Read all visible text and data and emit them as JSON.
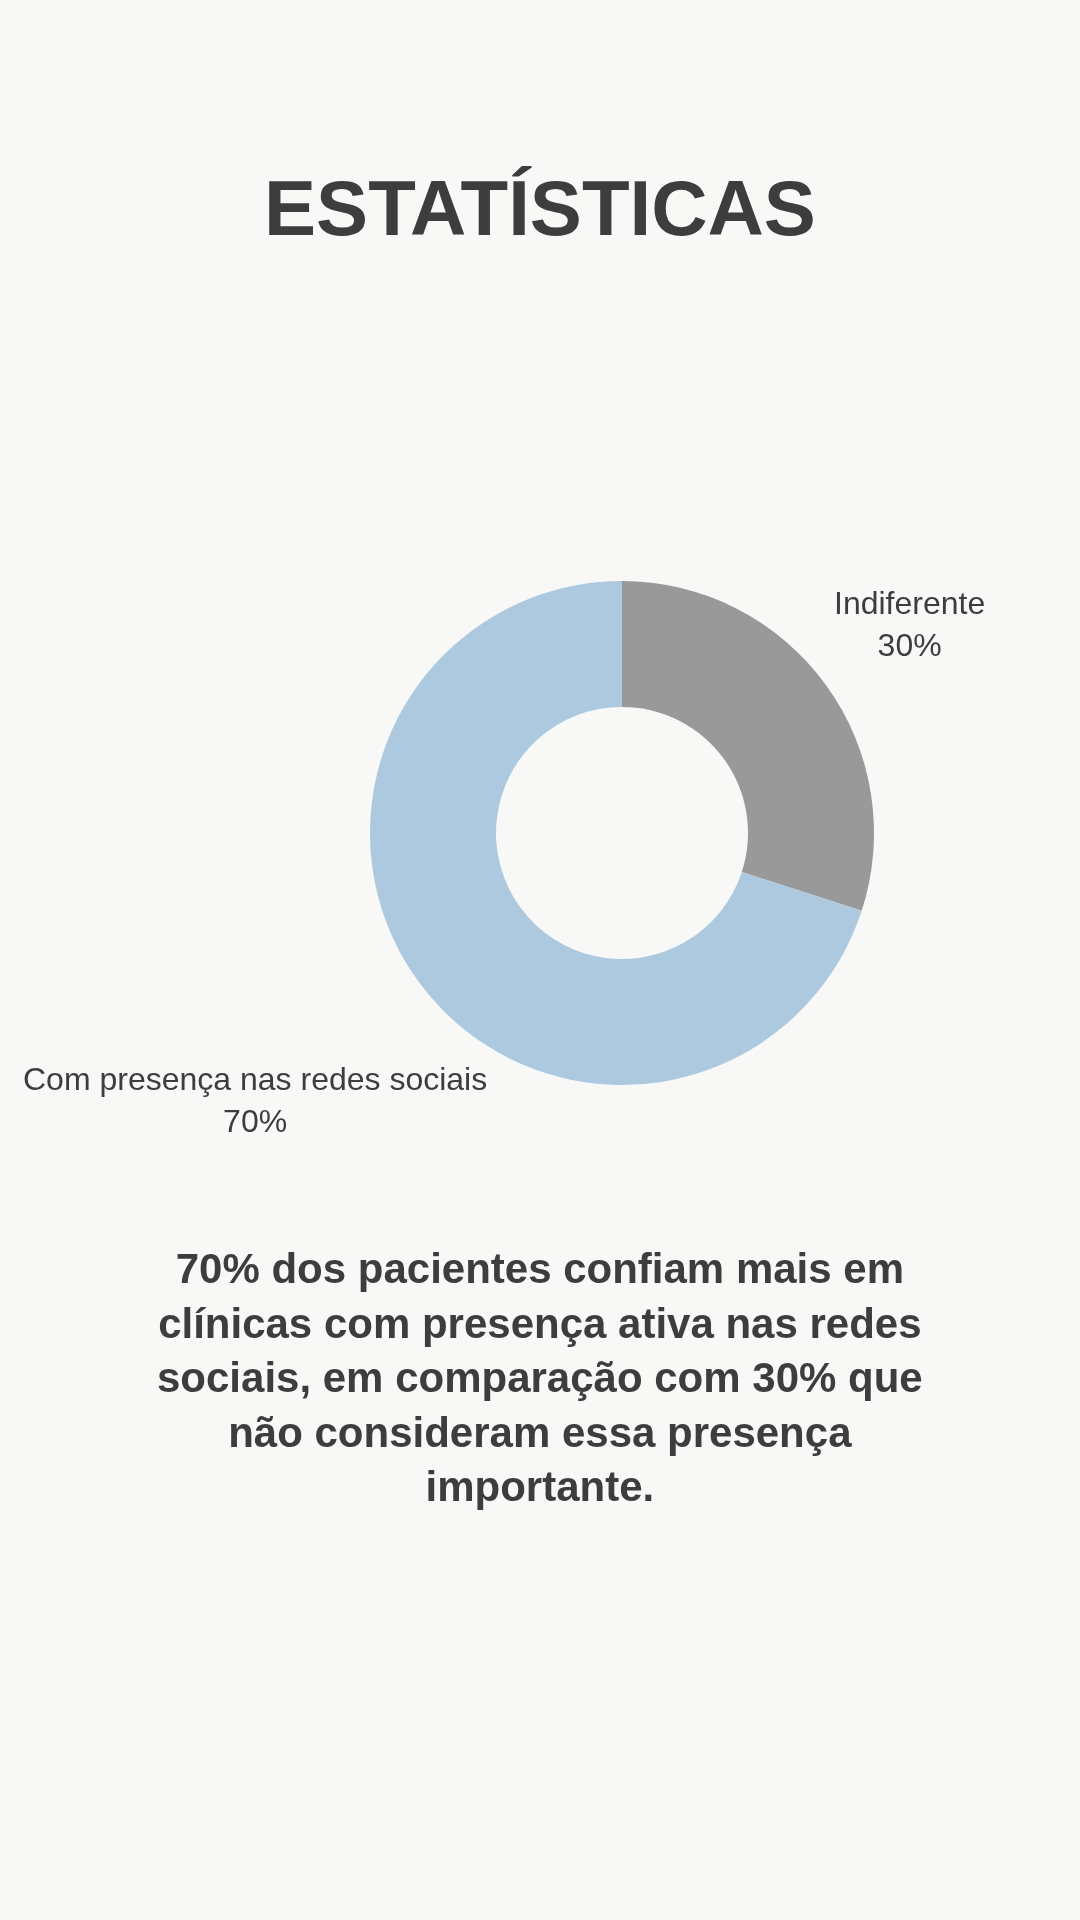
{
  "chart_data": {
    "type": "donut",
    "title": "ESTATÍSTICAS",
    "categories": [
      "Indiferente",
      "Com presença nas redes sociais"
    ],
    "values": [
      30,
      70
    ],
    "value_labels": [
      "30%",
      "70%"
    ],
    "colors": [
      "#999999",
      "#adc9e0"
    ],
    "annotations": [
      "70% dos pacientes confiam mais em clínicas com presença ativa nas redes sociais, em comparação com 30% que não consideram essa presença importante."
    ]
  }
}
